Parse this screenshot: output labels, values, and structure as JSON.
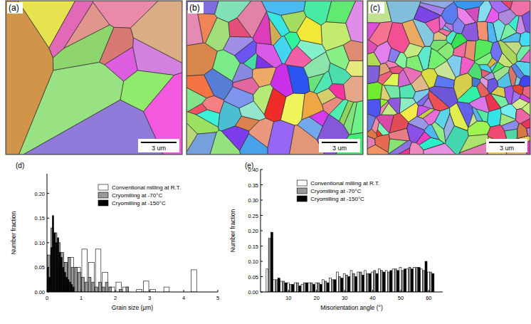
{
  "images": [
    {
      "label": "(a)",
      "scale_bar": "3 um"
    },
    {
      "label": "(b)",
      "scale_bar": "3 um"
    },
    {
      "label": "(c)",
      "scale_bar": "3 um"
    }
  ],
  "chart_data": [
    {
      "type": "histogram",
      "title": "(d)",
      "x_label": "Grain size (μm)",
      "y_label": "Number fraction",
      "xlim": [
        0,
        5
      ],
      "xticks": [
        0,
        1,
        2,
        3,
        4,
        5
      ],
      "ylim": [
        0,
        0.24
      ],
      "yticks": [
        {
          "value": 0,
          "label": "0.00"
        },
        {
          "value": 0.05,
          "label": "0.05"
        },
        {
          "value": 0.1,
          "label": "0.10"
        },
        {
          "value": 0.15,
          "label": "0.15"
        },
        {
          "value": 0.2,
          "label": "0.20"
        }
      ],
      "legend": "upper center",
      "series": [
        {
          "name": "Conventional milling at R.T.",
          "color": "#ffffff",
          "bins": [
            0,
            0.2,
            0.4,
            0.6,
            0.8,
            1.0,
            1.2,
            1.4,
            1.6,
            1.8,
            2.0,
            2.2,
            2.4,
            2.6,
            2.8,
            3.0,
            3.2,
            3.4,
            3.6,
            3.8,
            4.0,
            4.2,
            4.4,
            4.6
          ],
          "values": [
            0.02,
            0.05,
            0.06,
            0.07,
            0.05,
            0.087,
            0.06,
            0.087,
            0.04,
            0.01,
            0.02,
            0.01,
            0,
            0.005,
            0.022,
            0.005,
            0,
            0.01,
            0,
            0,
            0,
            0.045,
            0
          ]
        },
        {
          "name": "Cryomilling at -70°C",
          "color": "#999999",
          "bins": [
            0,
            0.1,
            0.2,
            0.3,
            0.4,
            0.5,
            0.6,
            0.7,
            0.8,
            0.9,
            1.0,
            1.1,
            1.2,
            1.3,
            1.4,
            1.5,
            1.6,
            1.7,
            1.8,
            1.9,
            2.0,
            2.1,
            2.2,
            2.3,
            2.4
          ],
          "values": [
            0.075,
            0.13,
            0.12,
            0.1,
            0.08,
            0.06,
            0.07,
            0.05,
            0.05,
            0.04,
            0.03,
            0.02,
            0.03,
            0.02,
            0.01,
            0.02,
            0.01,
            0.02,
            0.01,
            0,
            0,
            0.005,
            0,
            0.01
          ]
        },
        {
          "name": "Cryomilling at -150°C",
          "color": "#000000",
          "bins": [
            0,
            0.05,
            0.1,
            0.15,
            0.2,
            0.25,
            0.3,
            0.35,
            0.4,
            0.45,
            0.5,
            0.55,
            0.6,
            0.65,
            0.7,
            0.75,
            0.8
          ],
          "values": [
            0.05,
            0.03,
            0.09,
            0.155,
            0.12,
            0.1,
            0.11,
            0.08,
            0.07,
            0.05,
            0.04,
            0.03,
            0.025,
            0.02,
            0.015,
            0.01
          ]
        }
      ]
    },
    {
      "type": "histogram",
      "title": "(e)",
      "x_label": "Misorientation angle (°)",
      "y_label": "Number fraction",
      "xlim": [
        0,
        65
      ],
      "xticks": [
        10,
        20,
        30,
        40,
        50,
        60
      ],
      "ylim": [
        0,
        0.4
      ],
      "yticks": [
        {
          "value": 0,
          "label": "0.00"
        },
        {
          "value": 0.05,
          "label": "0.05"
        },
        {
          "value": 0.1,
          "label": "0.10"
        },
        {
          "value": 0.15,
          "label": "0.15"
        },
        {
          "value": 0.2,
          "label": "0.20"
        },
        {
          "value": 0.25,
          "label": "0.25"
        },
        {
          "value": 0.3,
          "label": "0.30"
        },
        {
          "value": 0.35,
          "label": "0.35"
        },
        {
          "value": 0.4,
          "label": "0.40"
        }
      ],
      "legend": "upper left",
      "bins": [
        2,
        4.5,
        7,
        9.5,
        12,
        14.5,
        17,
        19.5,
        22,
        24.5,
        27,
        29.5,
        32,
        34.5,
        37,
        39.5,
        42,
        44.5,
        47,
        49.5,
        52,
        54.5,
        57,
        59.5,
        62
      ],
      "series": [
        {
          "name": "Conventional milling at R.T.",
          "color": "#ffffff",
          "values": [
            0.075,
            0.04,
            0.035,
            0.03,
            0.03,
            0.025,
            0.03,
            0.03,
            0.04,
            0.045,
            0.065,
            0.06,
            0.07,
            0.065,
            0.07,
            0.065,
            0.075,
            0.07,
            0.075,
            0.08,
            0.075,
            0.08,
            0.075,
            0.065
          ]
        },
        {
          "name": "Cryomilling at -70°C",
          "color": "#999999",
          "values": [
            0.175,
            0.04,
            0.035,
            0.025,
            0.03,
            0.03,
            0.03,
            0.03,
            0.035,
            0.04,
            0.05,
            0.055,
            0.06,
            0.065,
            0.06,
            0.07,
            0.07,
            0.065,
            0.075,
            0.07,
            0.08,
            0.08,
            0.07,
            0.065
          ]
        },
        {
          "name": "Cryomilling at -150°C",
          "color": "#000000",
          "values": [
            0.195,
            0.045,
            0.03,
            0.025,
            0.02,
            0.03,
            0.025,
            0.025,
            0.03,
            0.04,
            0.045,
            0.05,
            0.05,
            0.055,
            0.06,
            0.06,
            0.065,
            0.07,
            0.07,
            0.075,
            0.075,
            0.08,
            0.1,
            0.06
          ]
        }
      ]
    }
  ]
}
